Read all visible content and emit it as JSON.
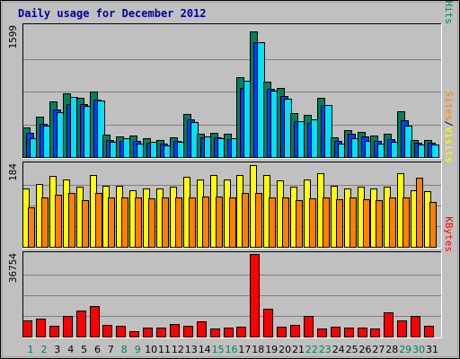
{
  "colors": {
    "hits": "#00805c",
    "files": "#0040ff",
    "pages": "#00e0ff",
    "visits": "#ffff00",
    "sites": "#ff8000",
    "kbytes": "#ff0000",
    "title": "#0000a0",
    "weekend": "#00805c",
    "weekday": "#000000",
    "background": "#c0c0c0",
    "grid": "#808080"
  },
  "chart_data": {
    "type": "bar",
    "title": "Daily usage for December 2012",
    "categories": [
      "1",
      "2",
      "3",
      "4",
      "5",
      "6",
      "7",
      "8",
      "9",
      "10",
      "11",
      "12",
      "13",
      "14",
      "15",
      "16",
      "17",
      "18",
      "19",
      "20",
      "21",
      "22",
      "23",
      "24",
      "25",
      "26",
      "27",
      "28",
      "29",
      "30",
      "31"
    ],
    "weekend_days": [
      1,
      2,
      8,
      9,
      15,
      16,
      22,
      23,
      29,
      30
    ],
    "panels": [
      {
        "id": "hits-panel",
        "ymax_label": "1599",
        "ylim": [
          0,
          1599
        ],
        "label_parts": [
          {
            "text": "Pages",
            "color": "#00e0ff"
          },
          {
            "text": "/",
            "color": "#000000"
          },
          {
            "text": "Files",
            "color": "#0040ff"
          },
          {
            "text": "/",
            "color": "#000000"
          },
          {
            "text": "Hits",
            "color": "#00805c"
          }
        ],
        "series": [
          {
            "key": "hits",
            "values": [
              360,
              490,
              680,
              780,
              720,
              800,
              270,
              250,
              260,
              230,
              210,
              240,
              530,
              290,
              300,
              290,
              980,
              1530,
              920,
              840,
              540,
              510,
              720,
              240,
              330,
              310,
              260,
              290,
              560,
              210,
              210
            ]
          },
          {
            "key": "files",
            "values": [
              300,
              400,
              580,
              650,
              650,
              700,
              210,
              200,
              200,
              180,
              160,
              200,
              460,
              240,
              240,
              220,
              840,
              1400,
              830,
              740,
              440,
              420,
              630,
              200,
              280,
              250,
              200,
              220,
              450,
              170,
              170
            ]
          },
          {
            "key": "pages",
            "values": [
              230,
              380,
              550,
              730,
              620,
              690,
              190,
              230,
              160,
              190,
              140,
              190,
              430,
              250,
              230,
              230,
              930,
              1400,
              810,
              710,
              440,
              460,
              640,
              160,
              230,
              200,
              160,
              190,
              380,
              150,
              150
            ]
          }
        ]
      },
      {
        "id": "visits-panel",
        "ymax_label": "184",
        "ylim": [
          0,
          184
        ],
        "label_parts": [
          {
            "text": "Sites",
            "color": "#ff8000"
          },
          {
            "text": "/",
            "color": "#000000"
          },
          {
            "text": "Visits",
            "color": "#ffff00"
          }
        ],
        "series": [
          {
            "key": "visits",
            "values": [
              130,
              140,
              158,
              150,
              133,
              160,
              135,
              135,
              125,
              130,
              130,
              133,
              155,
              150,
              160,
              150,
              160,
              182,
              160,
              148,
              133,
              150,
              163,
              135,
              130,
              133,
              130,
              133,
              163,
              125,
              123
            ]
          },
          {
            "key": "sites",
            "values": [
              87,
              110,
              115,
              120,
              103,
              120,
              110,
              110,
              110,
              108,
              110,
              110,
              110,
              113,
              113,
              110,
              120,
              120,
              110,
              110,
              103,
              108,
              110,
              105,
              110,
              105,
              103,
              110,
              110,
              153,
              100
            ]
          }
        ]
      },
      {
        "id": "kbytes-panel",
        "ymax_label": "36754",
        "ylim": [
          0,
          36754
        ],
        "label_parts": [
          {
            "text": "KBytes",
            "color": "#ff0000"
          }
        ],
        "series": [
          {
            "key": "kbytes",
            "values": [
              7200,
              7800,
              4600,
              9000,
              11500,
              13500,
              5200,
              4600,
              2500,
              4100,
              3800,
              5400,
              4700,
              6700,
              3700,
              3900,
              4400,
              36754,
              12500,
              4200,
              5000,
              9300,
              3500,
              4300,
              4000,
              3800,
              3700,
              10800,
              7000,
              9000,
              4700
            ]
          }
        ]
      }
    ]
  }
}
